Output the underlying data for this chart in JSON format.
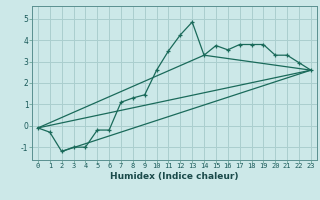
{
  "title": "",
  "xlabel": "Humidex (Indice chaleur)",
  "ylabel": "",
  "bg_color": "#cce8e8",
  "grid_color": "#aacece",
  "line_color": "#1a6a5a",
  "xlim": [
    -0.5,
    23.5
  ],
  "ylim": [
    -1.6,
    5.6
  ],
  "xticks": [
    0,
    1,
    2,
    3,
    4,
    5,
    6,
    7,
    8,
    9,
    10,
    11,
    12,
    13,
    14,
    15,
    16,
    17,
    18,
    19,
    20,
    21,
    22,
    23
  ],
  "yticks": [
    -1,
    0,
    1,
    2,
    3,
    4,
    5
  ],
  "main_x": [
    0,
    1,
    2,
    3,
    4,
    5,
    6,
    7,
    8,
    9,
    10,
    11,
    12,
    13,
    14,
    15,
    16,
    17,
    18,
    19,
    20,
    21,
    22,
    23
  ],
  "main_y": [
    -0.1,
    -0.3,
    -1.2,
    -1.0,
    -1.0,
    -0.2,
    -0.2,
    1.1,
    1.3,
    1.45,
    2.6,
    3.5,
    4.25,
    4.85,
    3.3,
    3.75,
    3.55,
    3.8,
    3.8,
    3.8,
    3.3,
    3.3,
    2.95,
    2.6
  ],
  "line1_x": [
    0,
    23
  ],
  "line1_y": [
    -0.1,
    2.6
  ],
  "line2_x": [
    0,
    14,
    23
  ],
  "line2_y": [
    -0.1,
    3.3,
    2.6
  ],
  "line3_x": [
    2,
    23
  ],
  "line3_y": [
    -1.2,
    2.6
  ],
  "xlabel_fontsize": 6.5,
  "xlabel_fontweight": "bold",
  "tick_fontsize": 5.0
}
